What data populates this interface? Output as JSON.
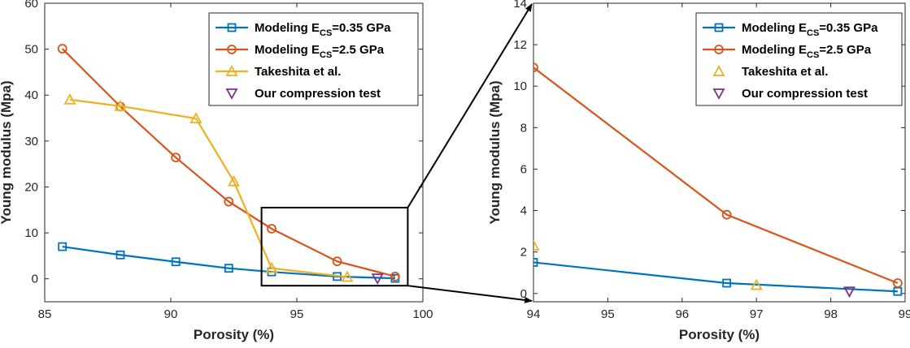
{
  "colors": {
    "blue": "#0072BD",
    "orange": "#D95319",
    "yellow": "#EDB120",
    "purple": "#7E2F8E",
    "axis": "#262626"
  },
  "chart_data": [
    {
      "type": "line",
      "xlabel": "Porosity (%)",
      "ylabel": "Young modulus (Mpa)",
      "xlim": [
        85,
        100
      ],
      "ylim": [
        -5,
        60
      ],
      "xticks": [
        85,
        90,
        95,
        100
      ],
      "yticks": [
        0,
        10,
        20,
        30,
        40,
        50,
        60
      ],
      "grid": false,
      "legend_position": "top-right",
      "zoom_box": {
        "x": [
          93.6,
          99.4
        ],
        "y": [
          -1.5,
          15.5
        ]
      },
      "series": [
        {
          "name": "Modeling E",
          "subscript": "CS",
          "name_suffix": "=0.35 GPa",
          "color": "blue",
          "marker": "square",
          "line": true,
          "x": [
            85.7,
            88.0,
            90.2,
            92.3,
            94.0,
            96.6,
            98.9
          ],
          "y": [
            7.0,
            5.2,
            3.7,
            2.3,
            1.5,
            0.5,
            0.1
          ]
        },
        {
          "name": "Modeling E",
          "subscript": "CS",
          "name_suffix": "=2.5 GPa",
          "color": "orange",
          "marker": "circle",
          "line": true,
          "x": [
            85.7,
            88.0,
            90.2,
            92.3,
            94.0,
            96.6,
            98.9
          ],
          "y": [
            50.1,
            37.5,
            26.4,
            16.8,
            10.9,
            3.8,
            0.5
          ]
        },
        {
          "name": "Takeshita et al.",
          "color": "yellow",
          "marker": "triangle-up",
          "line": true,
          "x": [
            86.0,
            88.0,
            91.0,
            92.5,
            94.0,
            97.0
          ],
          "y": [
            39.0,
            37.6,
            34.9,
            21.2,
            2.3,
            0.4
          ]
        },
        {
          "name": "Our compression test",
          "color": "purple",
          "marker": "triangle-down",
          "line": false,
          "x": [
            98.2
          ],
          "y": [
            0.1
          ]
        }
      ]
    },
    {
      "type": "line",
      "xlabel": "Porosity (%)",
      "ylabel": "Young modulus (Mpa)",
      "xlim": [
        94,
        99
      ],
      "ylim": [
        -0.4,
        14
      ],
      "xticks": [
        94,
        95,
        96,
        97,
        98,
        99
      ],
      "yticks": [
        0,
        2,
        4,
        6,
        8,
        10,
        12,
        14
      ],
      "grid": false,
      "legend_position": "top-right",
      "series": [
        {
          "name": "Modeling E",
          "subscript": "CS",
          "name_suffix": "=0.35 GPa",
          "color": "blue",
          "marker": "square",
          "line": true,
          "x": [
            93.6,
            94.0,
            96.6,
            98.9
          ],
          "y": [
            1.7,
            1.5,
            0.5,
            0.1
          ]
        },
        {
          "name": "Modeling E",
          "subscript": "CS",
          "name_suffix": "=2.5 GPa",
          "color": "orange",
          "marker": "circle",
          "line": true,
          "x": [
            93.6,
            94.0,
            96.6,
            98.9
          ],
          "y": [
            11.7,
            10.9,
            3.8,
            0.5
          ]
        },
        {
          "name": "Takeshita et al.",
          "color": "yellow",
          "marker": "triangle-up",
          "line": false,
          "x": [
            94.0,
            97.0
          ],
          "y": [
            2.3,
            0.4
          ]
        },
        {
          "name": "Our compression test",
          "color": "purple",
          "marker": "triangle-down",
          "line": false,
          "x": [
            98.25
          ],
          "y": [
            0.1
          ]
        }
      ]
    }
  ]
}
